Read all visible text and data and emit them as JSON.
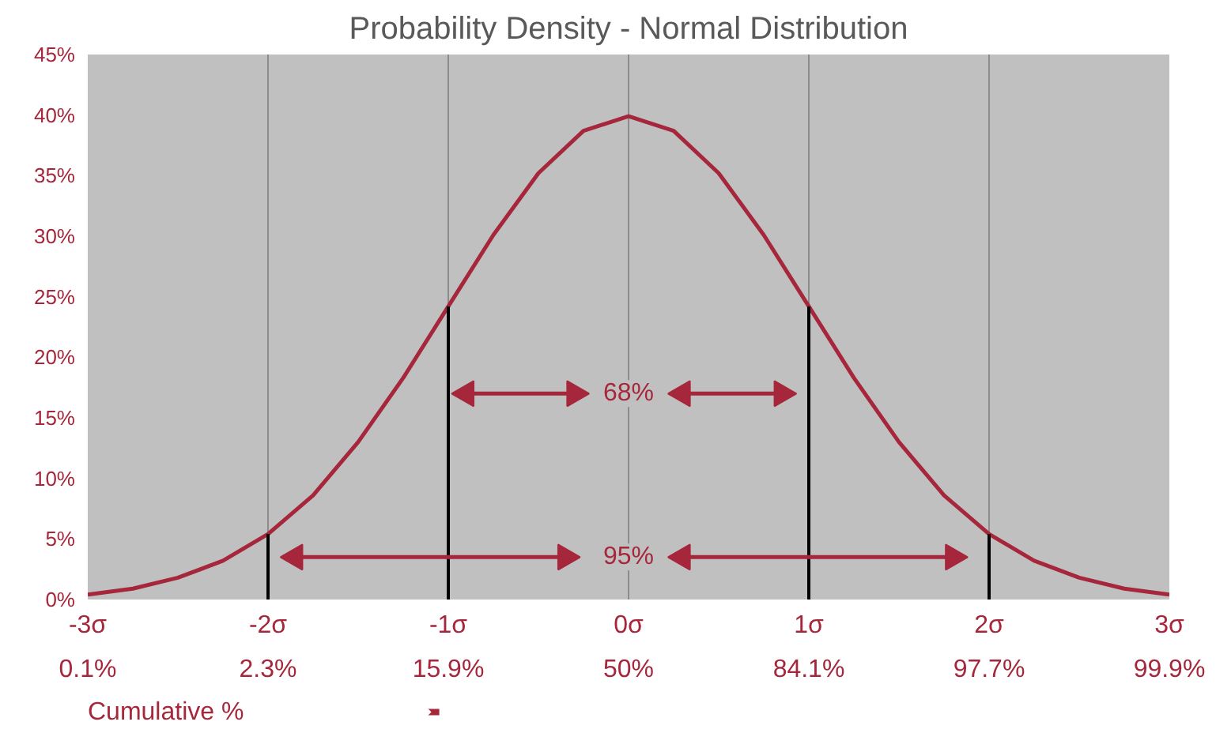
{
  "chart_data": {
    "type": "line",
    "title": "Probability Density - Normal Distribution",
    "x": [
      -3,
      -2.75,
      -2.5,
      -2.25,
      -2,
      -1.75,
      -1.5,
      -1.25,
      -1,
      -0.75,
      -0.5,
      -0.25,
      0,
      0.25,
      0.5,
      0.75,
      1,
      1.25,
      1.5,
      1.75,
      2,
      2.25,
      2.5,
      2.75,
      3
    ],
    "series": [
      {
        "color": "#a6273b",
        "values": [
          0.4,
          0.9,
          1.8,
          3.2,
          5.4,
          8.6,
          13,
          18.3,
          24.2,
          30.1,
          35.2,
          38.7,
          39.9,
          38.7,
          35.2,
          30.1,
          24.2,
          18.3,
          13,
          8.6,
          5.4,
          3.2,
          1.8,
          0.9,
          0.4
        ]
      },
      {
        "color": "#000000",
        "x": [
          -2,
          -2
        ],
        "values": [
          0,
          5.4
        ]
      },
      {
        "color": "#000000",
        "x": [
          -1,
          -1
        ],
        "values": [
          0,
          24.2
        ]
      },
      {
        "color": "#000000",
        "x": [
          1,
          1
        ],
        "values": [
          0,
          24.2
        ]
      },
      {
        "color": "#000000",
        "x": [
          2,
          2
        ],
        "values": [
          0,
          5.4
        ]
      },
      {
        "color": "#a6273b",
        "x": [
          -0.9,
          -0.3
        ],
        "values": [
          17,
          17
        ],
        "marker": "triangle"
      },
      {
        "color": "#a6273b",
        "x": [
          0.3,
          0.85
        ],
        "values": [
          17,
          17
        ],
        "marker": "triangle"
      },
      {
        "color": "#a6273b",
        "x": [
          -1.85,
          -0.35
        ],
        "values": [
          3.5,
          3.5
        ],
        "marker": "triangle"
      },
      {
        "color": "#a6273b",
        "x": [
          0.3,
          1.8
        ],
        "values": [
          3.5,
          3.5
        ],
        "marker": "triangle"
      }
    ],
    "annotations": [
      {
        "text": "68%",
        "x": 0,
        "y": 17
      },
      {
        "text": "95%",
        "x": 0,
        "y": 3.5
      },
      "0.1%",
      "2.3%",
      "15.9%",
      "50%",
      "84.1%",
      "97.7%",
      "99.9%"
    ],
    "xlabel": "Cumulative %",
    "xlim": [
      -3,
      3
    ],
    "ylim": [
      0,
      45
    ],
    "xticks": [
      {
        "value": -3,
        "label": "-3σ"
      },
      {
        "value": -2,
        "label": "-2σ"
      },
      {
        "value": -1,
        "label": "-1σ"
      },
      {
        "value": 0,
        "label": "0σ"
      },
      {
        "value": 1,
        "label": "1σ"
      },
      {
        "value": 2,
        "label": "2σ"
      },
      {
        "value": 3,
        "label": "3σ"
      }
    ],
    "yticks": [
      {
        "value": 0,
        "label": "0%"
      },
      {
        "value": 5,
        "label": "5%"
      },
      {
        "value": 10,
        "label": "10%"
      },
      {
        "value": 15,
        "label": "15%"
      },
      {
        "value": 20,
        "label": "20%"
      },
      {
        "value": 25,
        "label": "25%"
      },
      {
        "value": 30,
        "label": "30%"
      },
      {
        "value": 35,
        "label": "35%"
      },
      {
        "value": 40,
        "label": "40%"
      },
      {
        "value": 45,
        "label": "45%"
      }
    ],
    "grid": "x"
  }
}
